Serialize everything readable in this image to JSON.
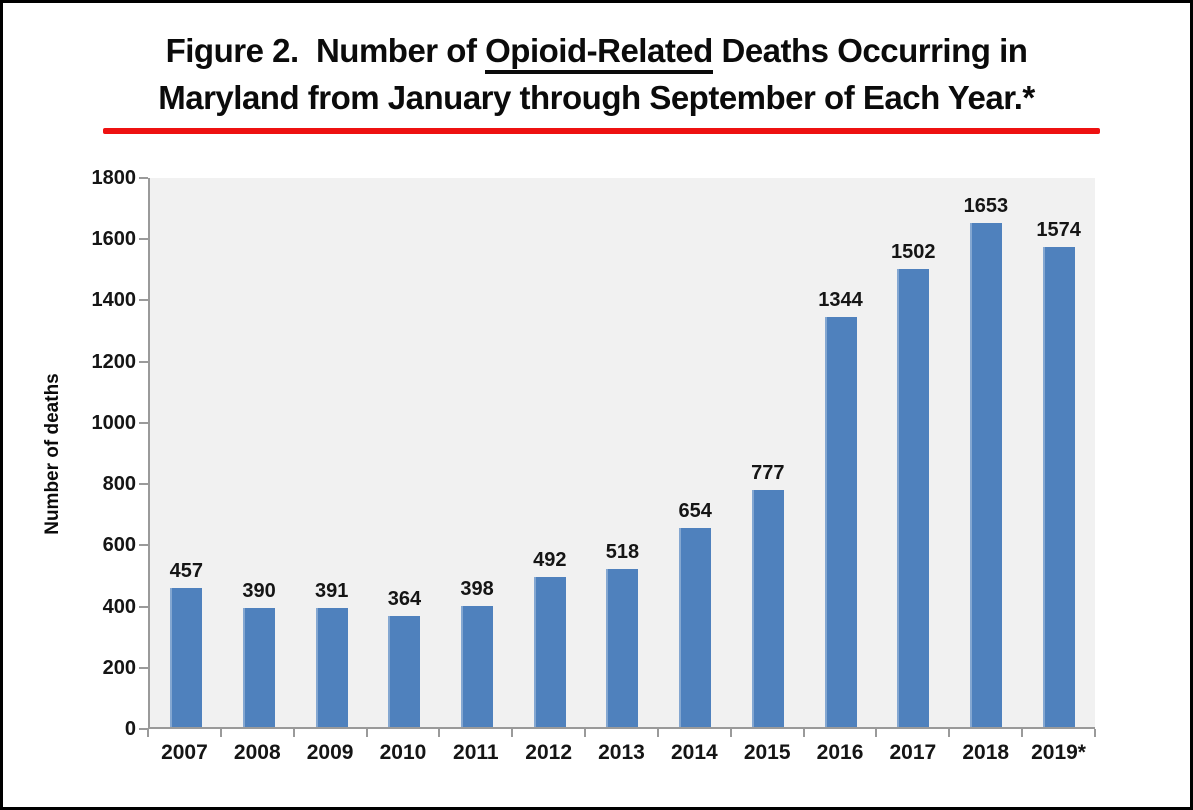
{
  "title": {
    "line1_pre": "Figure 2.  Number of ",
    "line1_underlined": "Opioid-Related",
    "line1_post": " Deaths Occurring in",
    "line2": "Maryland from January through September of Each Year.*",
    "red_rule_color": "#ee1111"
  },
  "chart_data": {
    "type": "bar",
    "title": "Figure 2. Number of Opioid-Related Deaths Occurring in Maryland from January through September of Each Year.*",
    "categories": [
      "2007",
      "2008",
      "2009",
      "2010",
      "2011",
      "2012",
      "2013",
      "2014",
      "2015",
      "2016",
      "2017",
      "2018",
      "2019*"
    ],
    "values": [
      457,
      390,
      391,
      364,
      398,
      492,
      518,
      654,
      777,
      1344,
      1502,
      1653,
      1574
    ],
    "xlabel": "",
    "ylabel": "Number of deaths",
    "ylim": [
      0,
      1800
    ],
    "yticks": [
      0,
      200,
      400,
      600,
      800,
      1000,
      1200,
      1400,
      1600,
      1800
    ],
    "grid": false,
    "legend": "none",
    "bar_color": "#4f81bd",
    "plot_bg_color": "#f1f1f1",
    "axis_color": "#9a9a9a"
  }
}
